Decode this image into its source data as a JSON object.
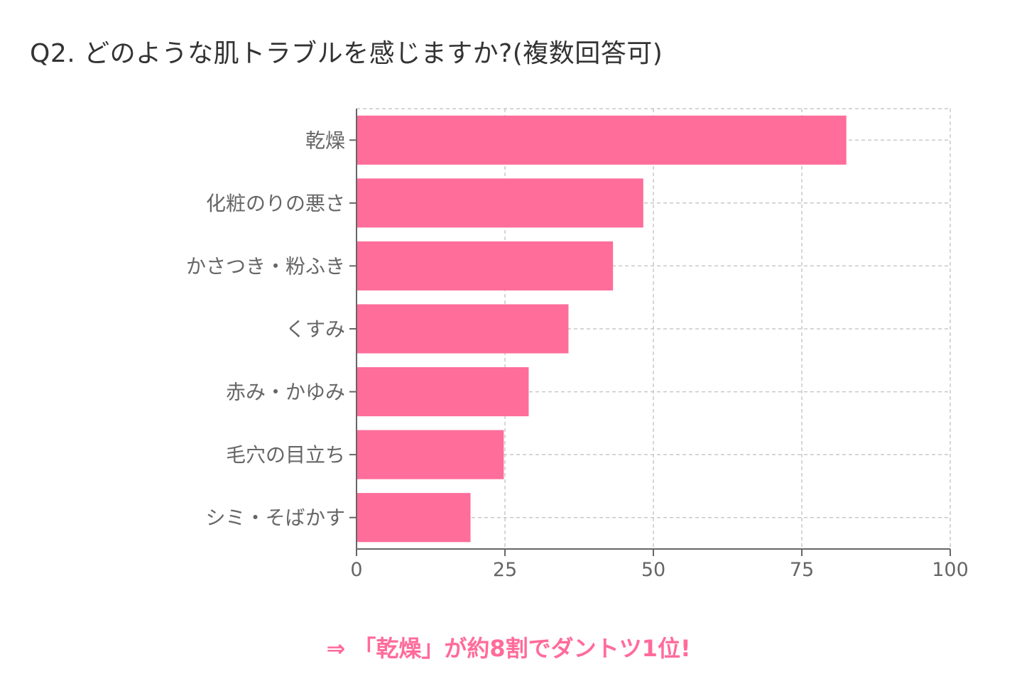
{
  "page": {
    "title": "Q2. どのような肌トラブルを感じますか?(複数回答可)",
    "footnote": "⇒ 「乾燥」が約8割でダントツ1位!"
  },
  "chart_data": {
    "type": "bar",
    "orientation": "horizontal",
    "title": "Q2. どのような肌トラブルを感じますか?(複数回答可)",
    "xlabel": "",
    "ylabel": "",
    "categories": [
      "乾燥",
      "化粧のりの悪さ",
      "かさつき・粉ふき",
      "くすみ",
      "赤み・かゆみ",
      "毛穴の目立ち",
      "シミ・そばかす"
    ],
    "values": [
      82.5,
      48.3,
      43.2,
      35.7,
      29.0,
      24.8,
      19.2
    ],
    "xlim": [
      0,
      100
    ],
    "xticks": [
      "0",
      "25",
      "50",
      "75",
      "100"
    ],
    "grid": true,
    "bar_color": "#ff6d9a",
    "legend": "none"
  }
}
